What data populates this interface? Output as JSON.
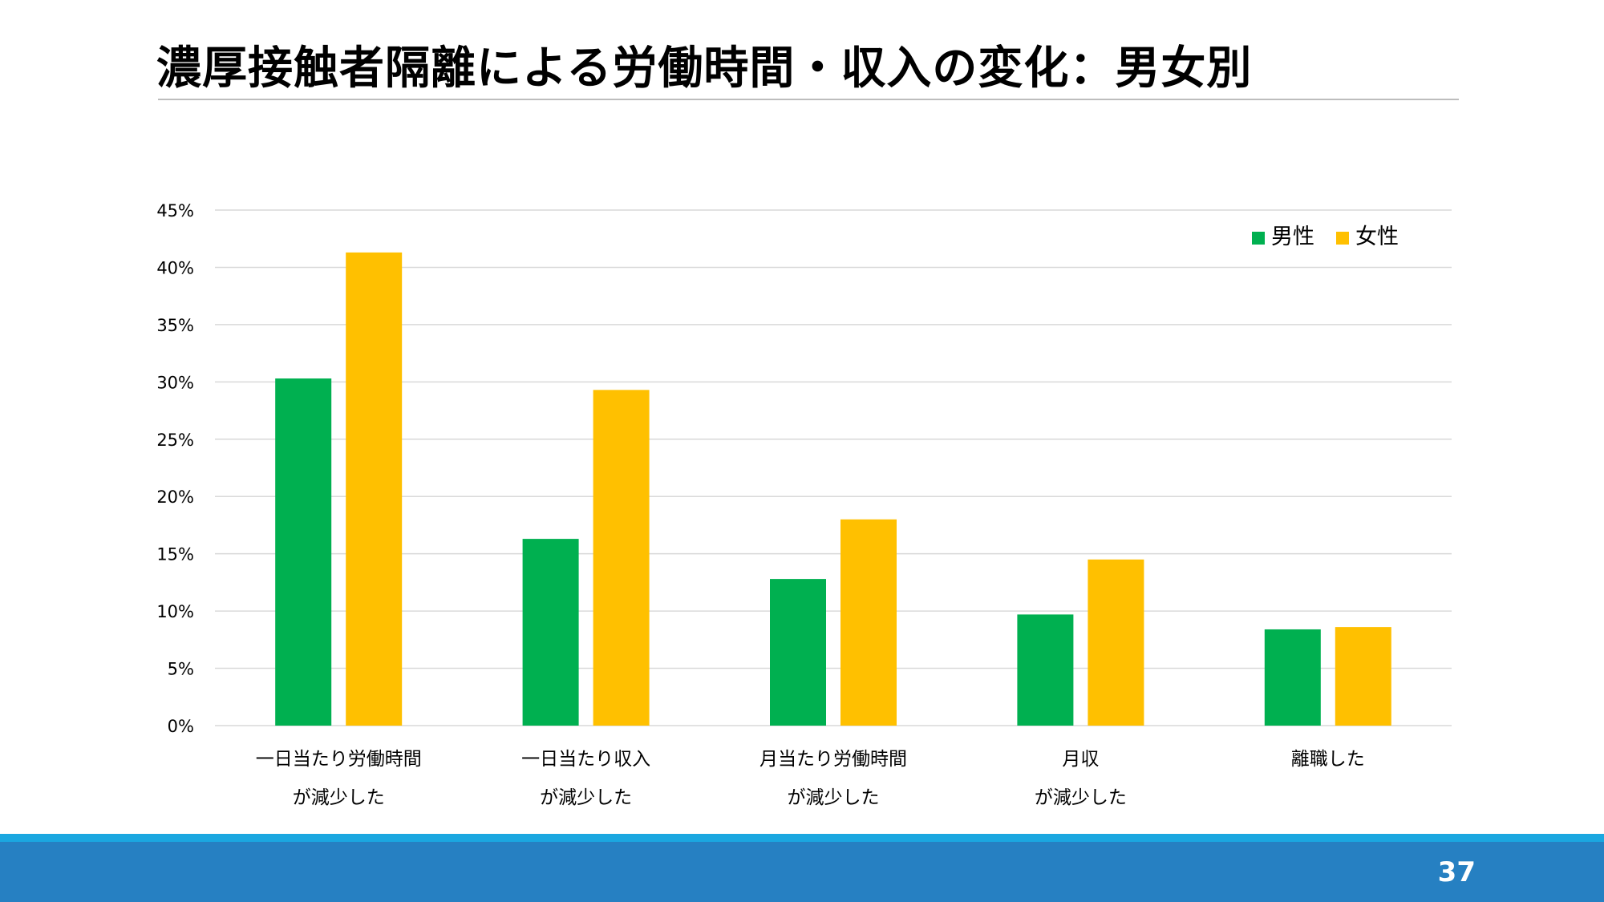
{
  "slide": {
    "title": "濃厚接触者隔離による労働時間・収入の変化：男女別",
    "page_number": "37"
  },
  "colors": {
    "male": "#00b050",
    "female": "#ffc000",
    "gridline": "#d9d9d9",
    "footer_accent": "#1ba7e0",
    "footer_bar": "#2680c2"
  },
  "chart_data": {
    "type": "bar",
    "title": "",
    "xlabel": "",
    "ylabel": "",
    "ylim": [
      0,
      45
    ],
    "y_ticks": [
      0,
      5,
      10,
      15,
      20,
      25,
      30,
      35,
      40,
      45
    ],
    "y_tick_suffix": "%",
    "grid": true,
    "legend_position": "top-right",
    "categories": [
      [
        "一日当たり労働時間",
        "が減少した"
      ],
      [
        "一日当たり収入",
        "が減少した"
      ],
      [
        "月当たり労働時間",
        "が減少した"
      ],
      [
        "月収",
        "が減少した"
      ],
      [
        "離職した"
      ]
    ],
    "series": [
      {
        "name": "男性",
        "color": "#00b050",
        "values": [
          30.3,
          16.3,
          12.8,
          9.7,
          8.4
        ]
      },
      {
        "name": "女性",
        "color": "#ffc000",
        "values": [
          41.3,
          29.3,
          18.0,
          14.5,
          8.6
        ]
      }
    ]
  }
}
